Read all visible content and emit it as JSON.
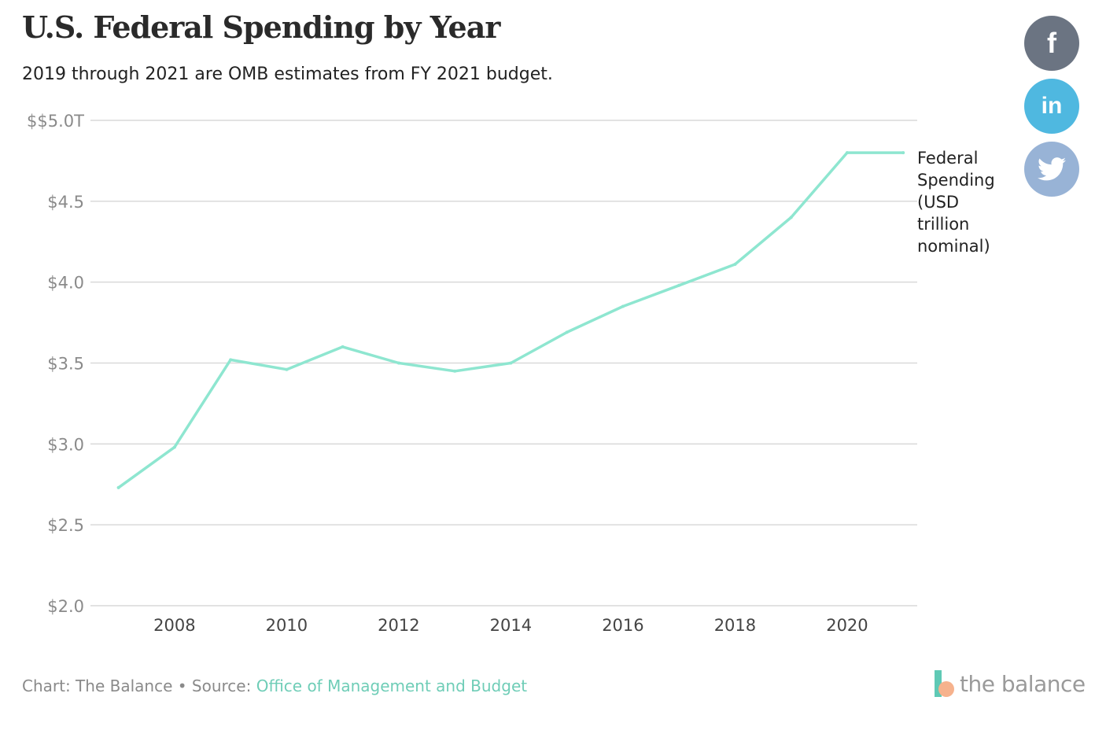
{
  "header": {
    "title": "U.S. Federal Spending by Year",
    "subtitle": "2019 through 2021 are OMB estimates from FY 2021 budget."
  },
  "chart_data": {
    "type": "line",
    "title": "U.S. Federal Spending by Year",
    "subtitle": "2019 through 2021 are OMB estimates from FY 2021 budget.",
    "x": [
      2007,
      2008,
      2009,
      2010,
      2011,
      2012,
      2013,
      2014,
      2015,
      2016,
      2017,
      2018,
      2019,
      2020,
      2021
    ],
    "series": [
      {
        "name": "Federal Spending (USD trillion nominal)",
        "values": [
          2.73,
          2.98,
          3.52,
          3.46,
          3.6,
          3.5,
          3.45,
          3.5,
          3.69,
          3.85,
          3.98,
          4.11,
          4.4,
          4.8,
          4.8
        ],
        "color": "#8ee6d0"
      }
    ],
    "xticks": [
      2008,
      2010,
      2012,
      2014,
      2016,
      2018,
      2020
    ],
    "xtick_labels": [
      "2008",
      "2010",
      "2012",
      "2014",
      "2016",
      "2018",
      "2020"
    ],
    "yticks": [
      2.0,
      2.5,
      3.0,
      3.5,
      4.0,
      4.5,
      5.0
    ],
    "ytick_labels": [
      "$2.0",
      "$2.5",
      "$3.0",
      "$3.5",
      "$4.0",
      "$4.5",
      "$$5.0T"
    ],
    "xlim": [
      2006.5,
      2021.25
    ],
    "ylim": [
      2.0,
      5.0
    ],
    "grid": true,
    "legend_lines": [
      "Federal",
      "Spending",
      "(USD",
      "trillion",
      "nominal)"
    ],
    "legend_position": "right, at line end"
  },
  "footer": {
    "chart_credit": "Chart: The Balance",
    "separator": "•",
    "source_label": "Source:",
    "source_link": "Office of Management and Budget"
  },
  "social": {
    "facebook_glyph": "f",
    "linkedin_glyph": "in"
  },
  "logo": {
    "wordmark": "the balance"
  },
  "colors": {
    "line": "#8ee6d0",
    "grid": "#d9d9d9",
    "link": "#6fcdb7",
    "facebook": "#6b7482",
    "linkedin": "#4fb8e0",
    "twitter": "#98b3d6"
  }
}
